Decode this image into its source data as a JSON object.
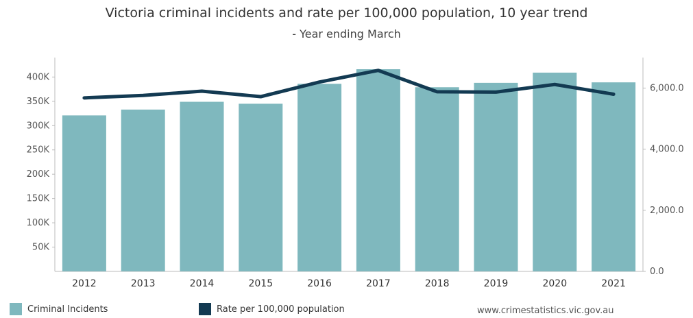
{
  "title": "Victoria criminal incidents and rate per 100,000 population, 10 year trend",
  "subtitle": "- Year ending March",
  "source": "www.crimestatistics.vic.gov.au",
  "colors": {
    "bar": "#7fb8be",
    "line": "#133a52",
    "axis": "#bbbbbb"
  },
  "chart_data": {
    "type": "bar",
    "categories": [
      "2012",
      "2013",
      "2014",
      "2015",
      "2016",
      "2017",
      "2018",
      "2019",
      "2020",
      "2021"
    ],
    "series": [
      {
        "name": "Criminal Incidents",
        "type": "bar",
        "axis": "left",
        "values": [
          321000,
          333000,
          349000,
          345000,
          386000,
          416000,
          379000,
          388000,
          409000,
          389000
        ]
      },
      {
        "name": "Rate per 100,000 population",
        "type": "line",
        "axis": "right",
        "values": [
          5680,
          5760,
          5900,
          5720,
          6200,
          6580,
          5880,
          5870,
          6120,
          5800
        ]
      }
    ],
    "left_axis": {
      "ylim": [
        0,
        440000
      ],
      "ticks": [
        50000,
        100000,
        150000,
        200000,
        250000,
        300000,
        350000,
        400000
      ],
      "tick_labels": [
        "50K",
        "100K",
        "150K",
        "200K",
        "250K",
        "300K",
        "350K",
        "400K"
      ]
    },
    "right_axis": {
      "ylim": [
        0,
        7000
      ],
      "ticks": [
        0,
        2000,
        4000,
        6000
      ],
      "tick_labels": [
        "0.0",
        "2,000.0",
        "4,000.0",
        "6,000.0"
      ]
    },
    "legend": [
      {
        "label": "Criminal Incidents",
        "kind": "bar"
      },
      {
        "label": "Rate per 100,000 population",
        "kind": "line"
      }
    ]
  }
}
